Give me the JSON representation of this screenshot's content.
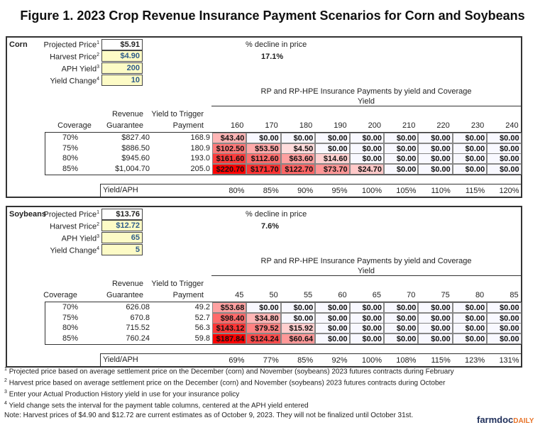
{
  "title": "Figure 1. 2023 Crop Revenue Insurance Payment Scenarios for Corn and Soybeans",
  "labels": {
    "projected": "Projected Price",
    "harvest": "Harvest Price",
    "aph": "APH Yield",
    "change": "Yield Change",
    "decline": "% decline in price",
    "rp_title": "RP and RP-HPE Insurance Payments by yield and Coverage",
    "yield": "Yield",
    "revenue": "Revenue",
    "guarantee": "Guarantee",
    "yield_trigger": "Yield to Trigger",
    "payment": "Payment",
    "coverage": "Coverage",
    "yield_aph": "Yield/APH",
    "sup1": "1",
    "sup2": "2",
    "sup3": "3",
    "sup4": "4"
  },
  "colors": {
    "heat_max": "#ff0000",
    "heat_min": "#f8f8ff",
    "input_bg": "#fdfbc6"
  },
  "sections": [
    {
      "crop": "Corn",
      "projected": "$5.91",
      "harvest": "$4.90",
      "aph": "200",
      "change": "10",
      "decline": "17.1%",
      "yields": [
        "160",
        "170",
        "180",
        "190",
        "200",
        "210",
        "220",
        "230",
        "240"
      ],
      "rows": [
        {
          "coverage": "70%",
          "guarantee": "$827.40",
          "trigger": "168.9",
          "payments": [
            "$43.40",
            "$0.00",
            "$0.00",
            "$0.00",
            "$0.00",
            "$0.00",
            "$0.00",
            "$0.00",
            "$0.00"
          ]
        },
        {
          "coverage": "75%",
          "guarantee": "$886.50",
          "trigger": "180.9",
          "payments": [
            "$102.50",
            "$53.50",
            "$4.50",
            "$0.00",
            "$0.00",
            "$0.00",
            "$0.00",
            "$0.00",
            "$0.00"
          ]
        },
        {
          "coverage": "80%",
          "guarantee": "$945.60",
          "trigger": "193.0",
          "payments": [
            "$161.60",
            "$112.60",
            "$63.60",
            "$14.60",
            "$0.00",
            "$0.00",
            "$0.00",
            "$0.00",
            "$0.00"
          ]
        },
        {
          "coverage": "85%",
          "guarantee": "$1,004.70",
          "trigger": "205.0",
          "payments": [
            "$220.70",
            "$171.70",
            "$122.70",
            "$73.70",
            "$24.70",
            "$0.00",
            "$0.00",
            "$0.00",
            "$0.00"
          ]
        }
      ],
      "ratios": [
        "80%",
        "85%",
        "90%",
        "95%",
        "100%",
        "105%",
        "110%",
        "115%",
        "120%"
      ]
    },
    {
      "crop": "Soybeans",
      "projected": "$13.76",
      "harvest": "$12.72",
      "aph": "65",
      "change": "5",
      "decline": "7.6%",
      "yields": [
        "45",
        "50",
        "55",
        "60",
        "65",
        "70",
        "75",
        "80",
        "85"
      ],
      "rows": [
        {
          "coverage": "70%",
          "guarantee": "626.08",
          "trigger": "49.2",
          "payments": [
            "$53.68",
            "$0.00",
            "$0.00",
            "$0.00",
            "$0.00",
            "$0.00",
            "$0.00",
            "$0.00",
            "$0.00"
          ]
        },
        {
          "coverage": "75%",
          "guarantee": "670.8",
          "trigger": "52.7",
          "payments": [
            "$98.40",
            "$34.80",
            "$0.00",
            "$0.00",
            "$0.00",
            "$0.00",
            "$0.00",
            "$0.00",
            "$0.00"
          ]
        },
        {
          "coverage": "80%",
          "guarantee": "715.52",
          "trigger": "56.3",
          "payments": [
            "$143.12",
            "$79.52",
            "$15.92",
            "$0.00",
            "$0.00",
            "$0.00",
            "$0.00",
            "$0.00",
            "$0.00"
          ]
        },
        {
          "coverage": "85%",
          "guarantee": "760.24",
          "trigger": "59.8",
          "payments": [
            "$187.84",
            "$124.24",
            "$60.64",
            "$0.00",
            "$0.00",
            "$0.00",
            "$0.00",
            "$0.00",
            "$0.00"
          ]
        }
      ],
      "ratios": [
        "69%",
        "77%",
        "85%",
        "92%",
        "100%",
        "108%",
        "115%",
        "123%",
        "131%"
      ]
    }
  ],
  "footnotes": [
    {
      "num": "1",
      "text": "Projected price based on average settlement price on the December (corn) and November (soybeans) 2023 futures contracts during February"
    },
    {
      "num": "2",
      "text": "Harvest price based on average settlement price on the December (corn) and November (soybeans) 2023 futures contracts during October"
    },
    {
      "num": "3",
      "text": "Enter your Actual Production History yield in use for your insurance policy"
    },
    {
      "num": "4",
      "text": "Yield change sets the interval for the payment table columns, centered at the APH yield entered"
    }
  ],
  "note": "Note: Harvest prices of $4.90 and $12.72 are current estimates as of October 9, 2023.  They will not be finalized until October 31st.",
  "logo": {
    "main": "farmdoc",
    "accent": "DAILY"
  }
}
